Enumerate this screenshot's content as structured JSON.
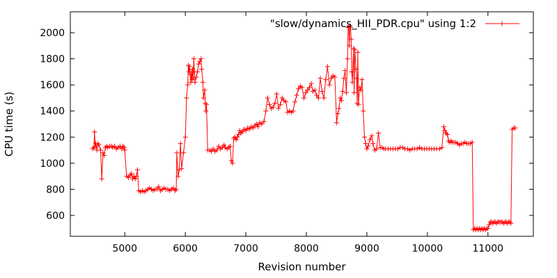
{
  "chart_data": {
    "type": "line",
    "title": "",
    "xlabel": "Revision number",
    "ylabel": "CPU time (s)",
    "xlim": [
      4100,
      11750
    ],
    "ylim": [
      440,
      2160
    ],
    "xticks": [
      5000,
      6000,
      7000,
      8000,
      9000,
      10000,
      11000
    ],
    "yticks": [
      600,
      800,
      1000,
      1200,
      1400,
      1600,
      1800,
      2000
    ],
    "grid": false,
    "legend": "top-right",
    "series": [
      {
        "name": "\"slow/dynamics_HII_PDR.cpu\" using 1:2",
        "color": "#ff0000",
        "marker": "plus",
        "points": [
          [
            4470,
            1110
          ],
          [
            4490,
            1120
          ],
          [
            4500,
            1240
          ],
          [
            4510,
            1130
          ],
          [
            4520,
            1150
          ],
          [
            4540,
            1100
          ],
          [
            4550,
            1150
          ],
          [
            4570,
            1140
          ],
          [
            4600,
            1100
          ],
          [
            4620,
            880
          ],
          [
            4640,
            1080
          ],
          [
            4660,
            1060
          ],
          [
            4680,
            1120
          ],
          [
            4700,
            1130
          ],
          [
            4720,
            1120
          ],
          [
            4750,
            1130
          ],
          [
            4780,
            1130
          ],
          [
            4800,
            1120
          ],
          [
            4830,
            1130
          ],
          [
            4860,
            1110
          ],
          [
            4890,
            1120
          ],
          [
            4920,
            1130
          ],
          [
            4950,
            1110
          ],
          [
            4970,
            1130
          ],
          [
            4990,
            1120
          ],
          [
            5000,
            1100
          ],
          [
            5030,
            900
          ],
          [
            5060,
            890
          ],
          [
            5090,
            910
          ],
          [
            5110,
            920
          ],
          [
            5130,
            880
          ],
          [
            5150,
            900
          ],
          [
            5170,
            880
          ],
          [
            5190,
            900
          ],
          [
            5210,
            950
          ],
          [
            5230,
            790
          ],
          [
            5260,
            780
          ],
          [
            5290,
            790
          ],
          [
            5320,
            780
          ],
          [
            5350,
            790
          ],
          [
            5380,
            800
          ],
          [
            5410,
            810
          ],
          [
            5440,
            800
          ],
          [
            5470,
            790
          ],
          [
            5500,
            800
          ],
          [
            5530,
            800
          ],
          [
            5560,
            820
          ],
          [
            5590,
            790
          ],
          [
            5620,
            800
          ],
          [
            5650,
            810
          ],
          [
            5680,
            800
          ],
          [
            5710,
            800
          ],
          [
            5740,
            790
          ],
          [
            5770,
            800
          ],
          [
            5800,
            810
          ],
          [
            5830,
            790
          ],
          [
            5850,
            800
          ],
          [
            5860,
            1080
          ],
          [
            5880,
            900
          ],
          [
            5900,
            950
          ],
          [
            5920,
            1150
          ],
          [
            5940,
            960
          ],
          [
            5970,
            1080
          ],
          [
            6000,
            1200
          ],
          [
            6020,
            1500
          ],
          [
            6040,
            1600
          ],
          [
            6050,
            1750
          ],
          [
            6060,
            1700
          ],
          [
            6070,
            1740
          ],
          [
            6080,
            1680
          ],
          [
            6090,
            1620
          ],
          [
            6100,
            1700
          ],
          [
            6110,
            1640
          ],
          [
            6120,
            1720
          ],
          [
            6130,
            1650
          ],
          [
            6140,
            1800
          ],
          [
            6150,
            1700
          ],
          [
            6160,
            1620
          ],
          [
            6180,
            1660
          ],
          [
            6200,
            1700
          ],
          [
            6220,
            1760
          ],
          [
            6240,
            1780
          ],
          [
            6260,
            1800
          ],
          [
            6270,
            1720
          ],
          [
            6290,
            1620
          ],
          [
            6300,
            1500
          ],
          [
            6320,
            1560
          ],
          [
            6330,
            1460
          ],
          [
            6340,
            1400
          ],
          [
            6350,
            1450
          ],
          [
            6370,
            1100
          ],
          [
            6400,
            1100
          ],
          [
            6430,
            1090
          ],
          [
            6460,
            1110
          ],
          [
            6490,
            1090
          ],
          [
            6520,
            1100
          ],
          [
            6550,
            1130
          ],
          [
            6580,
            1110
          ],
          [
            6610,
            1120
          ],
          [
            6640,
            1140
          ],
          [
            6660,
            1120
          ],
          [
            6690,
            1110
          ],
          [
            6720,
            1120
          ],
          [
            6740,
            1130
          ],
          [
            6760,
            1020
          ],
          [
            6780,
            1000
          ],
          [
            6800,
            1190
          ],
          [
            6820,
            1200
          ],
          [
            6840,
            1180
          ],
          [
            6860,
            1200
          ],
          [
            6880,
            1220
          ],
          [
            6900,
            1250
          ],
          [
            6920,
            1230
          ],
          [
            6940,
            1240
          ],
          [
            6970,
            1260
          ],
          [
            7000,
            1250
          ],
          [
            7030,
            1270
          ],
          [
            7060,
            1260
          ],
          [
            7090,
            1280
          ],
          [
            7120,
            1270
          ],
          [
            7150,
            1290
          ],
          [
            7180,
            1300
          ],
          [
            7200,
            1280
          ],
          [
            7230,
            1310
          ],
          [
            7260,
            1300
          ],
          [
            7300,
            1320
          ],
          [
            7330,
            1400
          ],
          [
            7360,
            1500
          ],
          [
            7390,
            1450
          ],
          [
            7420,
            1420
          ],
          [
            7450,
            1430
          ],
          [
            7480,
            1460
          ],
          [
            7510,
            1530
          ],
          [
            7540,
            1420
          ],
          [
            7570,
            1450
          ],
          [
            7600,
            1500
          ],
          [
            7630,
            1480
          ],
          [
            7660,
            1470
          ],
          [
            7690,
            1390
          ],
          [
            7720,
            1400
          ],
          [
            7750,
            1390
          ],
          [
            7780,
            1400
          ],
          [
            7810,
            1470
          ],
          [
            7840,
            1520
          ],
          [
            7870,
            1570
          ],
          [
            7900,
            1590
          ],
          [
            7930,
            1580
          ],
          [
            7960,
            1500
          ],
          [
            7990,
            1540
          ],
          [
            8020,
            1560
          ],
          [
            8050,
            1580
          ],
          [
            8080,
            1610
          ],
          [
            8110,
            1550
          ],
          [
            8140,
            1560
          ],
          [
            8170,
            1520
          ],
          [
            8200,
            1500
          ],
          [
            8230,
            1650
          ],
          [
            8260,
            1550
          ],
          [
            8290,
            1500
          ],
          [
            8320,
            1640
          ],
          [
            8350,
            1740
          ],
          [
            8380,
            1600
          ],
          [
            8410,
            1650
          ],
          [
            8440,
            1670
          ],
          [
            8470,
            1660
          ],
          [
            8500,
            1310
          ],
          [
            8520,
            1380
          ],
          [
            8540,
            1420
          ],
          [
            8560,
            1500
          ],
          [
            8580,
            1480
          ],
          [
            8600,
            1550
          ],
          [
            8620,
            1650
          ],
          [
            8640,
            1710
          ],
          [
            8660,
            1540
          ],
          [
            8680,
            1800
          ],
          [
            8690,
            2040
          ],
          [
            8700,
            2050
          ],
          [
            8710,
            1900
          ],
          [
            8720,
            2050
          ],
          [
            8730,
            2040
          ],
          [
            8740,
            1950
          ],
          [
            8750,
            1700
          ],
          [
            8760,
            1620
          ],
          [
            8780,
            1880
          ],
          [
            8790,
            1540
          ],
          [
            8800,
            1870
          ],
          [
            8820,
            1720
          ],
          [
            8830,
            1650
          ],
          [
            8840,
            1460
          ],
          [
            8850,
            1850
          ],
          [
            8860,
            1450
          ],
          [
            8880,
            1580
          ],
          [
            8900,
            1560
          ],
          [
            8920,
            1640
          ],
          [
            8940,
            1400
          ],
          [
            8960,
            1200
          ],
          [
            8980,
            1150
          ],
          [
            9000,
            1110
          ],
          [
            9020,
            1130
          ],
          [
            9050,
            1180
          ],
          [
            9080,
            1210
          ],
          [
            9100,
            1150
          ],
          [
            9130,
            1100
          ],
          [
            9160,
            1110
          ],
          [
            9190,
            1230
          ],
          [
            9220,
            1120
          ],
          [
            9250,
            1120
          ],
          [
            9280,
            1110
          ],
          [
            9310,
            1110
          ],
          [
            9350,
            1110
          ],
          [
            9390,
            1110
          ],
          [
            9430,
            1110
          ],
          [
            9470,
            1110
          ],
          [
            9510,
            1110
          ],
          [
            9550,
            1120
          ],
          [
            9590,
            1120
          ],
          [
            9630,
            1110
          ],
          [
            9670,
            1110
          ],
          [
            9710,
            1100
          ],
          [
            9750,
            1110
          ],
          [
            9790,
            1110
          ],
          [
            9830,
            1110
          ],
          [
            9870,
            1120
          ],
          [
            9910,
            1110
          ],
          [
            9950,
            1110
          ],
          [
            9990,
            1110
          ],
          [
            10030,
            1110
          ],
          [
            10070,
            1110
          ],
          [
            10110,
            1110
          ],
          [
            10150,
            1110
          ],
          [
            10200,
            1110
          ],
          [
            10240,
            1120
          ],
          [
            10270,
            1280
          ],
          [
            10290,
            1250
          ],
          [
            10310,
            1230
          ],
          [
            10330,
            1220
          ],
          [
            10350,
            1170
          ],
          [
            10370,
            1160
          ],
          [
            10390,
            1170
          ],
          [
            10410,
            1160
          ],
          [
            10440,
            1160
          ],
          [
            10470,
            1160
          ],
          [
            10500,
            1150
          ],
          [
            10530,
            1140
          ],
          [
            10560,
            1150
          ],
          [
            10590,
            1150
          ],
          [
            10620,
            1160
          ],
          [
            10650,
            1150
          ],
          [
            10680,
            1150
          ],
          [
            10710,
            1150
          ],
          [
            10740,
            1160
          ],
          [
            10760,
            490
          ],
          [
            10780,
            500
          ],
          [
            10800,
            490
          ],
          [
            10820,
            500
          ],
          [
            10840,
            490
          ],
          [
            10860,
            500
          ],
          [
            10880,
            490
          ],
          [
            10900,
            500
          ],
          [
            10920,
            490
          ],
          [
            10940,
            500
          ],
          [
            10960,
            490
          ],
          [
            10980,
            500
          ],
          [
            11000,
            500
          ],
          [
            11020,
            530
          ],
          [
            11040,
            550
          ],
          [
            11060,
            550
          ],
          [
            11080,
            540
          ],
          [
            11100,
            550
          ],
          [
            11120,
            550
          ],
          [
            11140,
            540
          ],
          [
            11160,
            550
          ],
          [
            11180,
            550
          ],
          [
            11200,
            550
          ],
          [
            11220,
            550
          ],
          [
            11240,
            550
          ],
          [
            11260,
            540
          ],
          [
            11280,
            550
          ],
          [
            11300,
            550
          ],
          [
            11320,
            540
          ],
          [
            11340,
            550
          ],
          [
            11360,
            550
          ],
          [
            11380,
            540
          ],
          [
            11400,
            1260
          ],
          [
            11430,
            1270
          ],
          [
            11450,
            1270
          ]
        ]
      }
    ]
  }
}
